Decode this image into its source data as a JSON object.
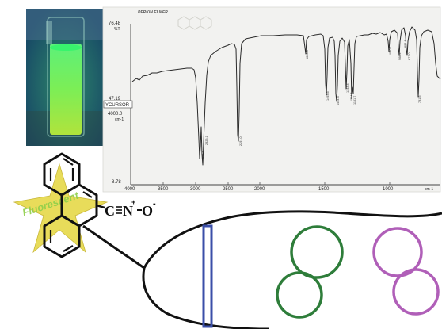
{
  "spectrum": {
    "instrument": "PERKIN ELMER",
    "y_top": "76.48",
    "y_top_unit": "%T",
    "y_mid": "47.19",
    "cursor_label": "YCURSOR",
    "cursor_value": "4000.0",
    "cursor_unit": "cm-1",
    "y_bottom": "8.78",
    "x_unit": "cm-1",
    "x_ticks": [
      "4000",
      "3500",
      "3000",
      "2500",
      "2000",
      "1500",
      "1000"
    ],
    "peak_labels": [
      "2854.1",
      "2925.1",
      "2291.0",
      "1603.3",
      "1493.6",
      "1454.3",
      "1343.4",
      "1214.5",
      "1161.7",
      "1030.1",
      "968.4",
      "894.4",
      "877.0",
      "781.5",
      "730.3"
    ]
  },
  "molecule": {
    "formula_c": "C",
    "formula_n": "N",
    "formula_charge_plus": "+",
    "formula_o": "O",
    "formula_charge_minus": "-",
    "star_text": "Fluorescent"
  },
  "colors": {
    "vial_background": "#1e5070",
    "star_fill": "#e8dc5a",
    "strip": "#3b4fa8",
    "green_circles": "#2e7d3a",
    "purple_circles": "#b05fb8"
  }
}
